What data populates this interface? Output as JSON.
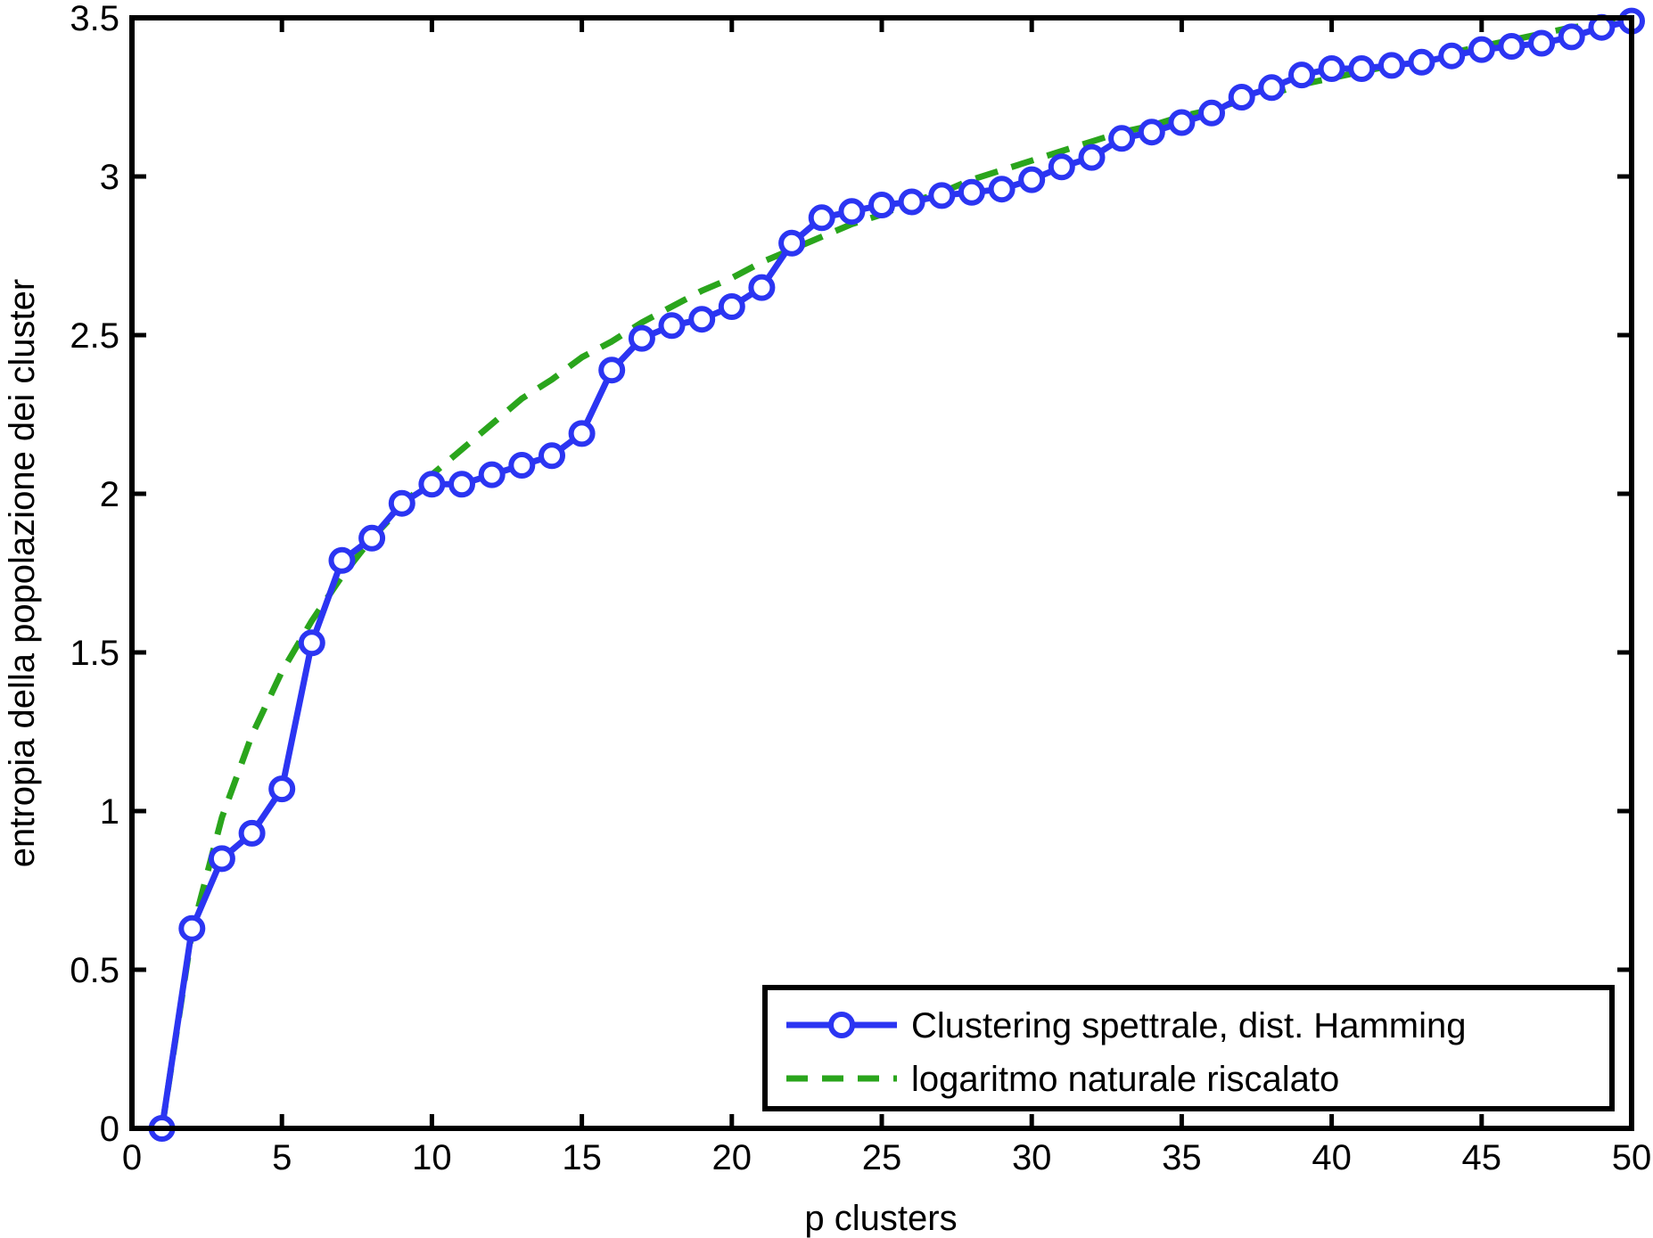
{
  "chart_data": {
    "type": "line",
    "title": "",
    "xlabel": "p clusters",
    "ylabel": "entropia della popolazione dei cluster",
    "xlim": [
      0,
      50
    ],
    "ylim": [
      0,
      3.5
    ],
    "x_ticks": [
      "0",
      "5",
      "10",
      "15",
      "20",
      "25",
      "30",
      "35",
      "40",
      "45",
      "50"
    ],
    "y_ticks": [
      "0",
      "0.5",
      "1",
      "1.5",
      "2",
      "2.5",
      "3",
      "3.5"
    ],
    "grid": false,
    "legend_position": "bottom-right",
    "x": [
      1,
      2,
      3,
      4,
      5,
      6,
      7,
      8,
      9,
      10,
      11,
      12,
      13,
      14,
      15,
      16,
      17,
      18,
      19,
      20,
      21,
      22,
      23,
      24,
      25,
      26,
      27,
      28,
      29,
      30,
      31,
      32,
      33,
      34,
      35,
      36,
      37,
      38,
      39,
      40,
      41,
      42,
      43,
      44,
      45,
      46,
      47,
      48,
      49,
      50
    ],
    "series": [
      {
        "name": "Clustering spettrale, dist. Hamming",
        "color": "#2b35f2",
        "style": "solid",
        "marker": "circle",
        "values": [
          0.0,
          0.63,
          0.85,
          0.93,
          1.07,
          1.53,
          1.79,
          1.86,
          1.97,
          2.03,
          2.03,
          2.06,
          2.09,
          2.12,
          2.19,
          2.39,
          2.49,
          2.53,
          2.55,
          2.59,
          2.65,
          2.79,
          2.87,
          2.89,
          2.91,
          2.92,
          2.94,
          2.95,
          2.96,
          2.99,
          3.03,
          3.06,
          3.12,
          3.14,
          3.17,
          3.2,
          3.25,
          3.28,
          3.32,
          3.34,
          3.34,
          3.35,
          3.36,
          3.38,
          3.4,
          3.41,
          3.42,
          3.44,
          3.47,
          3.49
        ]
      },
      {
        "name": "logaritmo naturale riscalato",
        "color": "#2aa51c",
        "style": "dashed",
        "marker": "none",
        "values": [
          0.0,
          0.62,
          0.98,
          1.24,
          1.44,
          1.6,
          1.74,
          1.86,
          1.96,
          2.06,
          2.14,
          2.22,
          2.3,
          2.36,
          2.43,
          2.48,
          2.54,
          2.59,
          2.64,
          2.68,
          2.73,
          2.77,
          2.81,
          2.85,
          2.88,
          2.92,
          2.95,
          2.99,
          3.02,
          3.05,
          3.08,
          3.11,
          3.14,
          3.16,
          3.19,
          3.21,
          3.24,
          3.26,
          3.29,
          3.31,
          3.33,
          3.35,
          3.37,
          3.39,
          3.41,
          3.43,
          3.45,
          3.47,
          3.48,
          3.5
        ]
      }
    ]
  }
}
